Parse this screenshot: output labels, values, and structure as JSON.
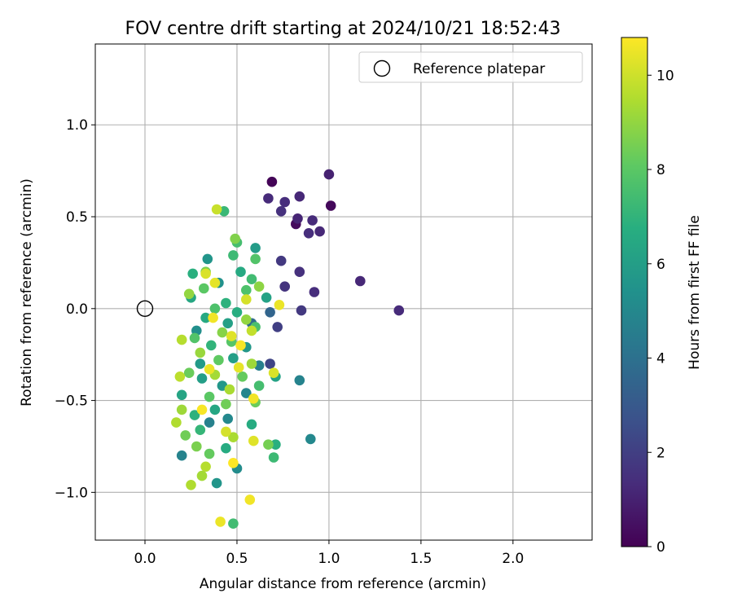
{
  "chart_data": {
    "type": "scatter",
    "title": "FOV centre drift starting at 2024/10/21 18:52:43",
    "xlabel": "Angular distance from reference (arcmin)",
    "ylabel": "Rotation from reference (arcmin)",
    "xlim": [
      -0.27,
      2.43
    ],
    "ylim": [
      -1.26,
      1.44
    ],
    "xticks": [
      0.0,
      0.5,
      1.0,
      1.5,
      2.0
    ],
    "xtick_labels": [
      "0.0",
      "0.5",
      "1.0",
      "1.5",
      "2.0"
    ],
    "yticks": [
      -1.0,
      -0.5,
      0.0,
      0.5,
      1.0
    ],
    "ytick_labels": [
      "−1.0",
      "−0.5",
      "0.0",
      "0.5",
      "1.0"
    ],
    "grid": true,
    "legend": {
      "position": "top-right",
      "label": "Reference platepar"
    },
    "reference_point": {
      "x": 0.0,
      "y": 0.0
    },
    "colorbar": {
      "label": "Hours from first FF file",
      "range": [
        0,
        10.8
      ],
      "ticks": [
        0,
        2,
        4,
        6,
        8,
        10
      ],
      "tick_labels": [
        "0",
        "2",
        "4",
        "6",
        "8",
        "10"
      ],
      "colormap": "viridis"
    },
    "points": [
      {
        "x": 0.69,
        "y": 0.69,
        "h": 0.1
      },
      {
        "x": 1.01,
        "y": 0.56,
        "h": 0.2
      },
      {
        "x": 0.82,
        "y": 0.46,
        "h": 0.3
      },
      {
        "x": 1.0,
        "y": 0.73,
        "h": 1.0
      },
      {
        "x": 0.67,
        "y": 0.6,
        "h": 1.3
      },
      {
        "x": 0.76,
        "y": 0.58,
        "h": 1.4
      },
      {
        "x": 0.84,
        "y": 0.61,
        "h": 1.2
      },
      {
        "x": 0.74,
        "y": 0.53,
        "h": 1.5
      },
      {
        "x": 0.83,
        "y": 0.49,
        "h": 1.1
      },
      {
        "x": 0.91,
        "y": 0.48,
        "h": 1.3
      },
      {
        "x": 0.89,
        "y": 0.41,
        "h": 1.4
      },
      {
        "x": 0.95,
        "y": 0.42,
        "h": 1.2
      },
      {
        "x": 0.74,
        "y": 0.26,
        "h": 1.8
      },
      {
        "x": 0.84,
        "y": 0.2,
        "h": 1.5
      },
      {
        "x": 0.76,
        "y": 0.12,
        "h": 1.6
      },
      {
        "x": 0.92,
        "y": 0.09,
        "h": 1.4
      },
      {
        "x": 1.17,
        "y": 0.15,
        "h": 1.2
      },
      {
        "x": 1.38,
        "y": -0.01,
        "h": 1.3
      },
      {
        "x": 0.85,
        "y": -0.01,
        "h": 1.8
      },
      {
        "x": 0.72,
        "y": -0.1,
        "h": 2.0
      },
      {
        "x": 0.68,
        "y": -0.3,
        "h": 2.2
      },
      {
        "x": 0.68,
        "y": -0.02,
        "h": 3.5
      },
      {
        "x": 0.58,
        "y": -0.08,
        "h": 3.8
      },
      {
        "x": 0.84,
        "y": -0.39,
        "h": 4.8
      },
      {
        "x": 0.9,
        "y": -0.71,
        "h": 5.0
      },
      {
        "x": 0.2,
        "y": -0.8,
        "h": 4.8
      },
      {
        "x": 0.39,
        "y": -0.95,
        "h": 5.6
      },
      {
        "x": 0.5,
        "y": -0.87,
        "h": 5.2
      },
      {
        "x": 0.35,
        "y": -0.62,
        "h": 4.7
      },
      {
        "x": 0.45,
        "y": -0.6,
        "h": 5.0
      },
      {
        "x": 0.55,
        "y": -0.46,
        "h": 4.9
      },
      {
        "x": 0.62,
        "y": -0.31,
        "h": 4.6
      },
      {
        "x": 0.28,
        "y": -0.12,
        "h": 5.3
      },
      {
        "x": 0.34,
        "y": 0.27,
        "h": 5.6
      },
      {
        "x": 0.4,
        "y": 0.14,
        "h": 5.4
      },
      {
        "x": 0.6,
        "y": 0.33,
        "h": 5.9
      },
      {
        "x": 0.55,
        "y": -0.21,
        "h": 5.7
      },
      {
        "x": 0.3,
        "y": -0.3,
        "h": 5.8
      },
      {
        "x": 0.48,
        "y": -0.27,
        "h": 6.0
      },
      {
        "x": 0.66,
        "y": 0.06,
        "h": 6.2
      },
      {
        "x": 0.25,
        "y": 0.06,
        "h": 6.4
      },
      {
        "x": 0.45,
        "y": -0.08,
        "h": 6.1
      },
      {
        "x": 0.52,
        "y": 0.2,
        "h": 6.5
      },
      {
        "x": 0.2,
        "y": -0.47,
        "h": 6.3
      },
      {
        "x": 0.31,
        "y": -0.38,
        "h": 6.0
      },
      {
        "x": 0.42,
        "y": -0.42,
        "h": 5.7
      },
      {
        "x": 0.38,
        "y": -0.55,
        "h": 6.4
      },
      {
        "x": 0.58,
        "y": -0.63,
        "h": 6.6
      },
      {
        "x": 0.71,
        "y": -0.37,
        "h": 6.2
      },
      {
        "x": 0.26,
        "y": 0.19,
        "h": 6.8
      },
      {
        "x": 0.44,
        "y": 0.03,
        "h": 6.9
      },
      {
        "x": 0.33,
        "y": -0.05,
        "h": 6.5
      },
      {
        "x": 0.5,
        "y": -0.02,
        "h": 6.7
      },
      {
        "x": 0.36,
        "y": -0.2,
        "h": 7.0
      },
      {
        "x": 0.27,
        "y": -0.58,
        "h": 6.9
      },
      {
        "x": 0.44,
        "y": -0.76,
        "h": 6.6
      },
      {
        "x": 0.3,
        "y": -0.66,
        "h": 7.1
      },
      {
        "x": 0.71,
        "y": -0.74,
        "h": 6.8
      },
      {
        "x": 0.7,
        "y": -0.81,
        "h": 7.3
      },
      {
        "x": 0.48,
        "y": -1.17,
        "h": 7.4
      },
      {
        "x": 0.43,
        "y": 0.53,
        "h": 7.2
      },
      {
        "x": 0.5,
        "y": 0.36,
        "h": 7.5
      },
      {
        "x": 0.48,
        "y": 0.29,
        "h": 7.3
      },
      {
        "x": 0.6,
        "y": 0.27,
        "h": 7.8
      },
      {
        "x": 0.58,
        "y": 0.16,
        "h": 7.4
      },
      {
        "x": 0.38,
        "y": 0.0,
        "h": 7.7
      },
      {
        "x": 0.6,
        "y": -0.1,
        "h": 7.6
      },
      {
        "x": 0.47,
        "y": -0.18,
        "h": 7.9
      },
      {
        "x": 0.62,
        "y": -0.42,
        "h": 7.5
      },
      {
        "x": 0.27,
        "y": -0.16,
        "h": 7.8
      },
      {
        "x": 0.32,
        "y": 0.11,
        "h": 8.0
      },
      {
        "x": 0.55,
        "y": 0.1,
        "h": 7.7
      },
      {
        "x": 0.4,
        "y": -0.28,
        "h": 8.1
      },
      {
        "x": 0.53,
        "y": -0.37,
        "h": 8.2
      },
      {
        "x": 0.35,
        "y": -0.48,
        "h": 8.0
      },
      {
        "x": 0.24,
        "y": -0.35,
        "h": 8.3
      },
      {
        "x": 0.44,
        "y": -0.52,
        "h": 8.4
      },
      {
        "x": 0.6,
        "y": -0.51,
        "h": 8.3
      },
      {
        "x": 0.67,
        "y": -0.74,
        "h": 8.5
      },
      {
        "x": 0.22,
        "y": -0.69,
        "h": 8.4
      },
      {
        "x": 0.28,
        "y": -0.75,
        "h": 8.6
      },
      {
        "x": 0.35,
        "y": -0.79,
        "h": 8.2
      },
      {
        "x": 0.33,
        "y": 0.2,
        "h": 8.6
      },
      {
        "x": 0.49,
        "y": 0.38,
        "h": 8.7
      },
      {
        "x": 0.62,
        "y": 0.12,
        "h": 8.9
      },
      {
        "x": 0.55,
        "y": -0.06,
        "h": 9.0
      },
      {
        "x": 0.42,
        "y": -0.13,
        "h": 8.8
      },
      {
        "x": 0.3,
        "y": -0.24,
        "h": 9.1
      },
      {
        "x": 0.58,
        "y": -0.3,
        "h": 9.2
      },
      {
        "x": 0.24,
        "y": 0.08,
        "h": 9.0
      },
      {
        "x": 0.38,
        "y": -0.36,
        "h": 9.3
      },
      {
        "x": 0.46,
        "y": -0.44,
        "h": 9.4
      },
      {
        "x": 0.2,
        "y": -0.55,
        "h": 9.2
      },
      {
        "x": 0.25,
        "y": -0.96,
        "h": 9.5
      },
      {
        "x": 0.31,
        "y": -0.91,
        "h": 9.3
      },
      {
        "x": 0.33,
        "y": -0.86,
        "h": 9.6
      },
      {
        "x": 0.48,
        "y": -0.7,
        "h": 9.4
      },
      {
        "x": 0.17,
        "y": -0.62,
        "h": 9.5
      },
      {
        "x": 0.19,
        "y": -0.37,
        "h": 9.7
      },
      {
        "x": 0.2,
        "y": -0.17,
        "h": 9.6
      },
      {
        "x": 0.58,
        "y": -0.12,
        "h": 9.8
      },
      {
        "x": 0.39,
        "y": 0.54,
        "h": 9.9
      },
      {
        "x": 0.33,
        "y": 0.19,
        "h": 10.2
      },
      {
        "x": 0.38,
        "y": 0.14,
        "h": 10.4
      },
      {
        "x": 0.55,
        "y": 0.05,
        "h": 10.1
      },
      {
        "x": 0.73,
        "y": 0.02,
        "h": 10.5
      },
      {
        "x": 0.37,
        "y": -0.05,
        "h": 10.6
      },
      {
        "x": 0.47,
        "y": -0.15,
        "h": 10.3
      },
      {
        "x": 0.52,
        "y": -0.2,
        "h": 10.7
      },
      {
        "x": 0.35,
        "y": -0.33,
        "h": 10.5
      },
      {
        "x": 0.51,
        "y": -0.32,
        "h": 10.4
      },
      {
        "x": 0.59,
        "y": -0.49,
        "h": 10.6
      },
      {
        "x": 0.7,
        "y": -0.35,
        "h": 10.2
      },
      {
        "x": 0.31,
        "y": -0.55,
        "h": 10.7
      },
      {
        "x": 0.48,
        "y": -0.84,
        "h": 10.8
      },
      {
        "x": 0.59,
        "y": -0.72,
        "h": 10.3
      },
      {
        "x": 0.57,
        "y": -1.04,
        "h": 10.6
      },
      {
        "x": 0.41,
        "y": -1.16,
        "h": 10.5
      },
      {
        "x": 0.44,
        "y": -0.67,
        "h": 10.1
      }
    ]
  }
}
